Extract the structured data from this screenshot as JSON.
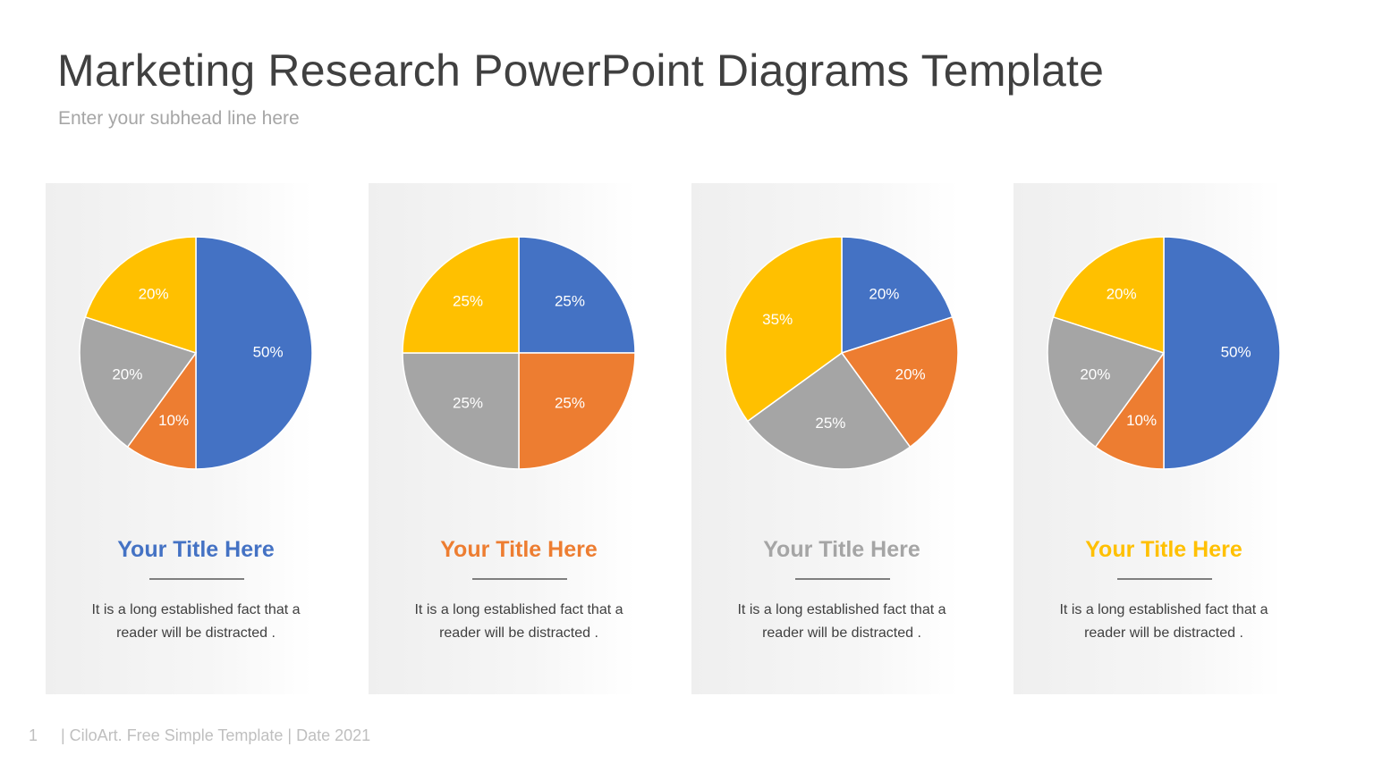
{
  "header": {
    "title": "Marketing Research PowerPoint Diagrams Template",
    "subhead": "Enter your subhead line here"
  },
  "colors": {
    "blue": "#4472c4",
    "orange": "#ed7d31",
    "gray": "#a5a5a5",
    "yellow": "#ffc000"
  },
  "cards": [
    {
      "title": "Your Title Here",
      "title_color": "#4472c4",
      "text_line1": "It is a long established fact that a",
      "text_line2": "reader will be distracted ."
    },
    {
      "title": "Your Title Here",
      "title_color": "#ed7d31",
      "text_line1": "It is a long established fact that a",
      "text_line2": "reader will be distracted ."
    },
    {
      "title": "Your Title Here",
      "title_color": "#a5a5a5",
      "text_line1": "It is a long established fact that a",
      "text_line2": "reader will be distracted ."
    },
    {
      "title": "Your Title Here",
      "title_color": "#ffc000",
      "text_line1": "It is a long established fact that a",
      "text_line2": "reader will be distracted ."
    }
  ],
  "chart_data": [
    {
      "type": "pie",
      "title": "",
      "categories": [
        "Blue",
        "Orange",
        "Gray",
        "Yellow"
      ],
      "values": [
        50,
        10,
        20,
        20
      ],
      "labels": [
        "50%",
        "10%",
        "20%",
        "20%"
      ],
      "colors": [
        "#4472c4",
        "#ed7d31",
        "#a5a5a5",
        "#ffc000"
      ],
      "start_angle": "12 o'clock, clockwise"
    },
    {
      "type": "pie",
      "title": "",
      "categories": [
        "Blue",
        "Orange",
        "Gray",
        "Yellow"
      ],
      "values": [
        25,
        25,
        25,
        25
      ],
      "labels": [
        "25%",
        "25%",
        "25%",
        "25%"
      ],
      "colors": [
        "#4472c4",
        "#ed7d31",
        "#a5a5a5",
        "#ffc000"
      ],
      "start_angle": "12 o'clock, clockwise"
    },
    {
      "type": "pie",
      "title": "",
      "categories": [
        "Blue",
        "Orange",
        "Gray",
        "Yellow"
      ],
      "values": [
        20,
        20,
        25,
        35
      ],
      "labels": [
        "20%",
        "20%",
        "25%",
        "35%"
      ],
      "colors": [
        "#4472c4",
        "#ed7d31",
        "#a5a5a5",
        "#ffc000"
      ],
      "start_angle": "12 o'clock, clockwise"
    },
    {
      "type": "pie",
      "title": "",
      "categories": [
        "Blue",
        "Orange",
        "Gray",
        "Yellow"
      ],
      "values": [
        50,
        10,
        20,
        20
      ],
      "labels": [
        "50%",
        "10%",
        "20%",
        "20%"
      ],
      "colors": [
        "#4472c4",
        "#ed7d31",
        "#a5a5a5",
        "#ffc000"
      ],
      "start_angle": "12 o'clock, clockwise"
    }
  ],
  "footer": {
    "page_number": "1",
    "text": "| CiloArt. Free Simple Template | Date 2021"
  }
}
